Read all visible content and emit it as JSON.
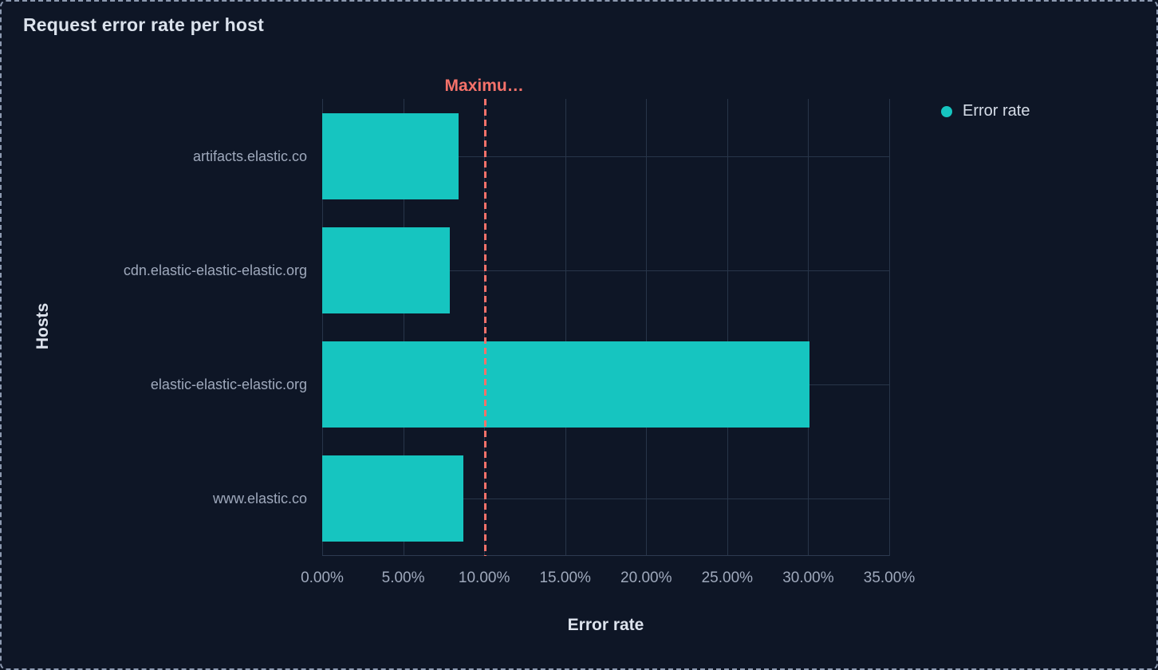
{
  "panel": {
    "title": "Request error rate per host"
  },
  "legend": {
    "items": [
      {
        "label": "Error rate",
        "color": "#16c5c0"
      }
    ]
  },
  "chart_data": {
    "type": "bar",
    "orientation": "horizontal",
    "title": "Request error rate per host",
    "categories": [
      "artifacts.elastic.co",
      "cdn.elastic-elastic-elastic.org",
      "elastic-elastic-elastic.org",
      "www.elastic.co"
    ],
    "series": [
      {
        "name": "Error rate",
        "color": "#16c5c0",
        "values": [
          8.4,
          7.9,
          30.1,
          8.7
        ]
      }
    ],
    "xlabel": "Error rate",
    "ylabel": "Hosts",
    "xlim": [
      0,
      35
    ],
    "x_tick_values": [
      0,
      5,
      10,
      15,
      20,
      25,
      30,
      35
    ],
    "x_tick_labels": [
      "0.00%",
      "5.00%",
      "10.00%",
      "15.00%",
      "20.00%",
      "25.00%",
      "30.00%",
      "35.00%"
    ],
    "grid": true,
    "legend_position": "right",
    "threshold": {
      "label": "Maximu…",
      "value": 10,
      "color": "#f6726a",
      "style": "dashed"
    }
  },
  "colors": {
    "background": "#0e1626",
    "panel_border": "#8c99b0",
    "gridline": "#283549",
    "bar": "#16c5c0",
    "threshold": "#f6726a",
    "title_text": "#dbe2ec",
    "tick_text": "#9fa9bc"
  }
}
